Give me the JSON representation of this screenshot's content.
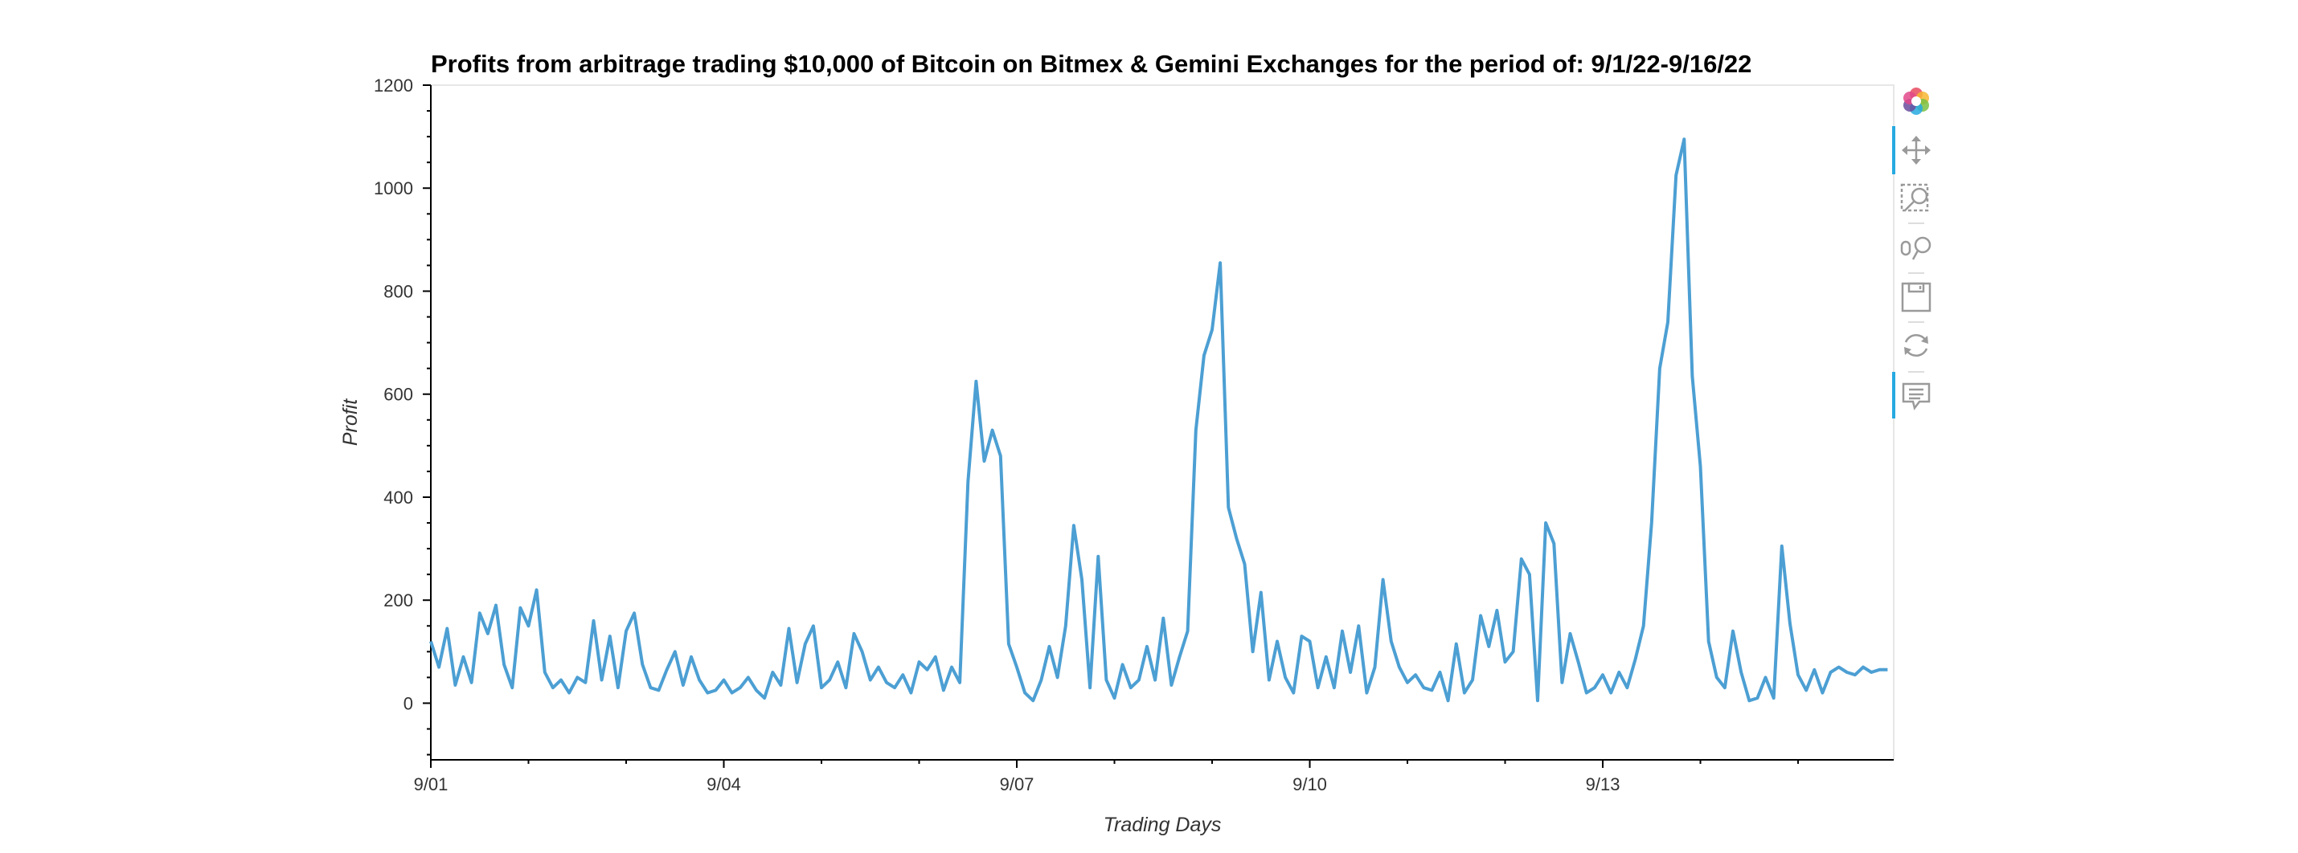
{
  "chart_data": {
    "type": "line",
    "title": "Profits from arbitrage trading $10,000 of Bitcoin on Bitmex & Gemini Exchanges for the period of: 9/1/22-9/16/22",
    "xlabel": "Trading Days",
    "ylabel": "Profit",
    "ylim": [
      -110,
      1200
    ],
    "xlim": [
      "2022-09-01T00:00",
      "2022-09-15T23:30"
    ],
    "yticks": [
      0,
      200,
      400,
      600,
      800,
      1000,
      1200
    ],
    "xticks": [
      {
        "value": "2022-09-01T00:00",
        "label": "9/01"
      },
      {
        "value": "2022-09-04T00:00",
        "label": "9/04"
      },
      {
        "value": "2022-09-07T00:00",
        "label": "9/07"
      },
      {
        "value": "2022-09-10T00:00",
        "label": "9/10"
      },
      {
        "value": "2022-09-13T00:00",
        "label": "9/13"
      }
    ],
    "grid": false,
    "legend": "none",
    "series": [
      {
        "color": "#4c9fd3",
        "x": [
          "2022-09-01T00:00",
          "2022-09-01T02:00",
          "2022-09-01T04:00",
          "2022-09-01T06:00",
          "2022-09-01T08:00",
          "2022-09-01T10:00",
          "2022-09-01T12:00",
          "2022-09-01T14:00",
          "2022-09-01T16:00",
          "2022-09-01T18:00",
          "2022-09-01T20:00",
          "2022-09-01T22:00",
          "2022-09-02T00:00",
          "2022-09-02T02:00",
          "2022-09-02T04:00",
          "2022-09-02T06:00",
          "2022-09-02T08:00",
          "2022-09-02T10:00",
          "2022-09-02T12:00",
          "2022-09-02T14:00",
          "2022-09-02T16:00",
          "2022-09-02T18:00",
          "2022-09-02T20:00",
          "2022-09-02T22:00",
          "2022-09-03T00:00",
          "2022-09-03T02:00",
          "2022-09-03T04:00",
          "2022-09-03T06:00",
          "2022-09-03T08:00",
          "2022-09-03T10:00",
          "2022-09-03T12:00",
          "2022-09-03T14:00",
          "2022-09-03T16:00",
          "2022-09-03T18:00",
          "2022-09-03T20:00",
          "2022-09-03T22:00",
          "2022-09-04T00:00",
          "2022-09-04T02:00",
          "2022-09-04T04:00",
          "2022-09-04T06:00",
          "2022-09-04T08:00",
          "2022-09-04T10:00",
          "2022-09-04T12:00",
          "2022-09-04T14:00",
          "2022-09-04T16:00",
          "2022-09-04T18:00",
          "2022-09-04T20:00",
          "2022-09-04T22:00",
          "2022-09-05T00:00",
          "2022-09-05T02:00",
          "2022-09-05T04:00",
          "2022-09-05T06:00",
          "2022-09-05T08:00",
          "2022-09-05T10:00",
          "2022-09-05T12:00",
          "2022-09-05T14:00",
          "2022-09-05T16:00",
          "2022-09-05T18:00",
          "2022-09-05T20:00",
          "2022-09-05T22:00",
          "2022-09-06T00:00",
          "2022-09-06T02:00",
          "2022-09-06T04:00",
          "2022-09-06T06:00",
          "2022-09-06T08:00",
          "2022-09-06T10:00",
          "2022-09-06T12:00",
          "2022-09-06T14:00",
          "2022-09-06T16:00",
          "2022-09-06T18:00",
          "2022-09-06T20:00",
          "2022-09-06T22:00",
          "2022-09-07T00:00",
          "2022-09-07T02:00",
          "2022-09-07T04:00",
          "2022-09-07T06:00",
          "2022-09-07T08:00",
          "2022-09-07T10:00",
          "2022-09-07T12:00",
          "2022-09-07T14:00",
          "2022-09-07T16:00",
          "2022-09-07T18:00",
          "2022-09-07T20:00",
          "2022-09-07T22:00",
          "2022-09-08T00:00",
          "2022-09-08T02:00",
          "2022-09-08T04:00",
          "2022-09-08T06:00",
          "2022-09-08T08:00",
          "2022-09-08T10:00",
          "2022-09-08T12:00",
          "2022-09-08T14:00",
          "2022-09-08T16:00",
          "2022-09-08T18:00",
          "2022-09-08T20:00",
          "2022-09-08T22:00",
          "2022-09-09T00:00",
          "2022-09-09T02:00",
          "2022-09-09T04:00",
          "2022-09-09T06:00",
          "2022-09-09T08:00",
          "2022-09-09T10:00",
          "2022-09-09T12:00",
          "2022-09-09T14:00",
          "2022-09-09T16:00",
          "2022-09-09T18:00",
          "2022-09-09T20:00",
          "2022-09-09T22:00",
          "2022-09-10T00:00",
          "2022-09-10T02:00",
          "2022-09-10T04:00",
          "2022-09-10T06:00",
          "2022-09-10T08:00",
          "2022-09-10T10:00",
          "2022-09-10T12:00",
          "2022-09-10T14:00",
          "2022-09-10T16:00",
          "2022-09-10T18:00",
          "2022-09-10T20:00",
          "2022-09-10T22:00",
          "2022-09-11T00:00",
          "2022-09-11T02:00",
          "2022-09-11T04:00",
          "2022-09-11T06:00",
          "2022-09-11T08:00",
          "2022-09-11T10:00",
          "2022-09-11T12:00",
          "2022-09-11T14:00",
          "2022-09-11T16:00",
          "2022-09-11T18:00",
          "2022-09-11T20:00",
          "2022-09-11T22:00",
          "2022-09-12T00:00",
          "2022-09-12T02:00",
          "2022-09-12T04:00",
          "2022-09-12T06:00",
          "2022-09-12T08:00",
          "2022-09-12T10:00",
          "2022-09-12T12:00",
          "2022-09-12T14:00",
          "2022-09-12T16:00",
          "2022-09-12T18:00",
          "2022-09-12T20:00",
          "2022-09-12T22:00",
          "2022-09-13T00:00",
          "2022-09-13T02:00",
          "2022-09-13T04:00",
          "2022-09-13T06:00",
          "2022-09-13T08:00",
          "2022-09-13T10:00",
          "2022-09-13T12:00",
          "2022-09-13T14:00",
          "2022-09-13T16:00",
          "2022-09-13T18:00",
          "2022-09-13T20:00",
          "2022-09-13T22:00",
          "2022-09-14T00:00",
          "2022-09-14T02:00",
          "2022-09-14T04:00",
          "2022-09-14T06:00",
          "2022-09-14T08:00",
          "2022-09-14T10:00",
          "2022-09-14T12:00",
          "2022-09-14T14:00",
          "2022-09-14T16:00",
          "2022-09-14T18:00",
          "2022-09-14T20:00",
          "2022-09-14T22:00",
          "2022-09-15T00:00",
          "2022-09-15T02:00",
          "2022-09-15T04:00",
          "2022-09-15T06:00",
          "2022-09-15T08:00",
          "2022-09-15T10:00",
          "2022-09-15T12:00",
          "2022-09-15T14:00",
          "2022-09-15T16:00",
          "2022-09-15T18:00",
          "2022-09-15T20:00",
          "2022-09-15T22:00"
        ],
        "values": [
          120,
          70,
          145,
          35,
          90,
          40,
          175,
          135,
          190,
          75,
          30,
          185,
          150,
          220,
          60,
          30,
          45,
          20,
          50,
          40,
          160,
          45,
          130,
          30,
          140,
          175,
          75,
          30,
          25,
          65,
          100,
          35,
          90,
          45,
          20,
          25,
          45,
          20,
          30,
          50,
          25,
          10,
          60,
          35,
          145,
          40,
          115,
          150,
          30,
          45,
          80,
          30,
          135,
          100,
          45,
          70,
          40,
          30,
          55,
          20,
          80,
          65,
          90,
          25,
          70,
          40,
          430,
          625,
          470,
          530,
          480,
          115,
          70,
          20,
          5,
          45,
          110,
          50,
          150,
          345,
          240,
          30,
          285,
          45,
          10,
          75,
          30,
          45,
          110,
          45,
          165,
          35,
          90,
          140,
          530,
          675,
          725,
          855,
          380,
          320,
          270,
          100,
          215,
          45,
          120,
          50,
          20,
          130,
          120,
          30,
          90,
          30,
          140,
          60,
          150,
          20,
          70,
          240,
          120,
          70,
          40,
          55,
          30,
          25,
          60,
          5,
          115,
          20,
          45,
          170,
          110,
          180,
          80,
          100,
          280,
          250,
          5,
          350,
          310,
          40,
          135,
          80,
          20,
          30,
          55,
          20,
          60,
          30,
          85,
          150,
          350,
          650,
          740,
          1025,
          1095,
          635,
          460,
          120,
          50,
          30,
          140,
          60,
          5,
          10,
          50,
          10,
          305,
          155,
          55,
          25,
          65,
          20,
          60,
          70,
          60,
          55,
          70,
          60,
          65,
          65
        ]
      }
    ]
  },
  "toolbar": {
    "tools": [
      {
        "name": "bokeh-logo",
        "icon": "bokeh-logo-icon",
        "active": false
      },
      {
        "name": "pan",
        "icon": "pan-icon",
        "active": true
      },
      {
        "name": "box-zoom",
        "icon": "box-zoom-icon",
        "active": false
      },
      {
        "name": "wheel-zoom",
        "icon": "wheel-zoom-icon",
        "active": false
      },
      {
        "name": "save",
        "icon": "save-icon",
        "active": false
      },
      {
        "name": "reset",
        "icon": "reset-icon",
        "active": false
      },
      {
        "name": "hover",
        "icon": "hover-icon",
        "active": true
      }
    ]
  }
}
